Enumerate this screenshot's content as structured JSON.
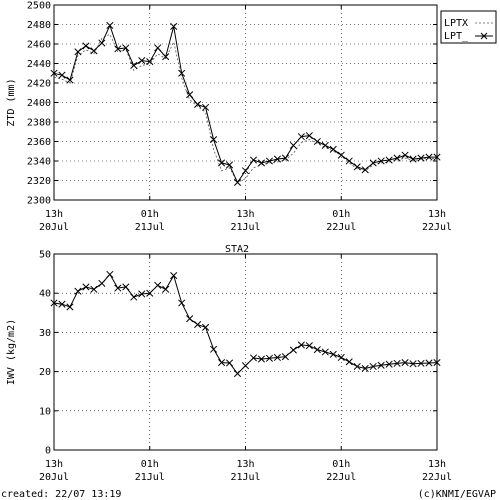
{
  "station": "STA2",
  "footer": {
    "created": "created: 22/07 13:19",
    "credit": "(c)KNMI/EGVAP"
  },
  "chart_data": [
    {
      "type": "line",
      "panel": "ztd",
      "ylabel": "ZTD (mm)",
      "ylim": [
        2300,
        2500
      ],
      "yticks": [
        2300,
        2320,
        2340,
        2360,
        2380,
        2400,
        2420,
        2440,
        2460,
        2480,
        2500
      ],
      "xlim": [
        0,
        48
      ],
      "xticks": [
        {
          "x": 0,
          "top": "13h",
          "bottom": "20Jul"
        },
        {
          "x": 12,
          "top": "01h",
          "bottom": "21Jul"
        },
        {
          "x": 24,
          "top": "13h",
          "bottom": "21Jul"
        },
        {
          "x": 36,
          "top": "01h",
          "bottom": "22Jul"
        },
        {
          "x": 48,
          "top": "13h",
          "bottom": "22Jul"
        }
      ],
      "legend": "top-right",
      "grid": true,
      "series": [
        {
          "name": "LPTX",
          "style": "dashed",
          "x": [
            0,
            1,
            2,
            3,
            4,
            5,
            6,
            7,
            8,
            9,
            10,
            11,
            12,
            13,
            14,
            15,
            16,
            17,
            18,
            19,
            20,
            21,
            22,
            23,
            24,
            25,
            26,
            27,
            28,
            29,
            30,
            31,
            32,
            33,
            34,
            35,
            36,
            37,
            38,
            39,
            40,
            41,
            42,
            43,
            44,
            45,
            46,
            47,
            48
          ],
          "y": [
            2426,
            2424,
            2420,
            2448,
            2454,
            2450,
            2466,
            2470,
            2452,
            2455,
            2433,
            2438,
            2440,
            2450,
            2445,
            2462,
            2425,
            2403,
            2396,
            2390,
            2352,
            2330,
            2333,
            2318,
            2322,
            2333,
            2336,
            2338,
            2339,
            2341,
            2348,
            2359,
            2362,
            2358,
            2354,
            2350,
            2346,
            2338,
            2332,
            2330,
            2336,
            2338,
            2339,
            2341,
            2343,
            2340,
            2342,
            2343,
            2342
          ]
        },
        {
          "name": "LPT_",
          "style": "solid-x",
          "x": [
            0,
            1,
            2,
            3,
            4,
            5,
            6,
            7,
            8,
            9,
            10,
            11,
            12,
            13,
            14,
            15,
            16,
            17,
            18,
            19,
            20,
            21,
            22,
            23,
            24,
            25,
            26,
            27,
            28,
            29,
            30,
            31,
            32,
            33,
            34,
            35,
            36,
            37,
            38,
            39,
            40,
            41,
            42,
            43,
            44,
            45,
            46,
            47,
            48
          ],
          "y": [
            2430,
            2428,
            2423,
            2452,
            2458,
            2453,
            2461,
            2479,
            2455,
            2456,
            2438,
            2443,
            2442,
            2456,
            2447,
            2478,
            2430,
            2408,
            2398,
            2395,
            2362,
            2338,
            2336,
            2318,
            2330,
            2341,
            2338,
            2340,
            2342,
            2343,
            2356,
            2365,
            2366,
            2360,
            2356,
            2352,
            2346,
            2340,
            2334,
            2331,
            2338,
            2340,
            2341,
            2343,
            2346,
            2342,
            2343,
            2344,
            2344
          ]
        }
      ]
    },
    {
      "type": "line",
      "panel": "iwv",
      "ylabel": "IWV (kg/m2)",
      "ylim": [
        0,
        50
      ],
      "yticks": [
        0,
        10,
        20,
        30,
        40,
        50
      ],
      "xlim": [
        0,
        48
      ],
      "xticks": [
        {
          "x": 0,
          "top": "13h",
          "bottom": "20Jul"
        },
        {
          "x": 12,
          "top": "01h",
          "bottom": "21Jul"
        },
        {
          "x": 24,
          "top": "13h",
          "bottom": "21Jul"
        },
        {
          "x": 36,
          "top": "01h",
          "bottom": "22Jul"
        },
        {
          "x": 48,
          "top": "13h",
          "bottom": "22Jul"
        }
      ],
      "grid": true,
      "series": [
        {
          "style": "solid-x",
          "x": [
            0,
            1,
            2,
            3,
            4,
            5,
            6,
            7,
            8,
            9,
            10,
            11,
            12,
            13,
            14,
            15,
            16,
            17,
            18,
            19,
            20,
            21,
            22,
            23,
            24,
            25,
            26,
            27,
            28,
            29,
            30,
            31,
            32,
            33,
            34,
            35,
            36,
            37,
            38,
            39,
            40,
            41,
            42,
            43,
            44,
            45,
            46,
            47,
            48
          ],
          "y": [
            37.5,
            37.2,
            36.5,
            40.5,
            41.6,
            41.0,
            42.5,
            44.8,
            41.3,
            41.6,
            39.0,
            39.8,
            40.0,
            42.0,
            41.0,
            44.5,
            37.5,
            33.5,
            32.0,
            31.3,
            25.7,
            22.3,
            22.2,
            19.5,
            21.5,
            23.5,
            23.2,
            23.4,
            23.6,
            23.8,
            25.5,
            26.8,
            26.6,
            25.6,
            25.0,
            24.4,
            23.6,
            22.5,
            21.3,
            20.8,
            21.3,
            21.6,
            21.9,
            22.1,
            22.3,
            22.0,
            22.1,
            22.2,
            22.3
          ]
        }
      ]
    }
  ]
}
